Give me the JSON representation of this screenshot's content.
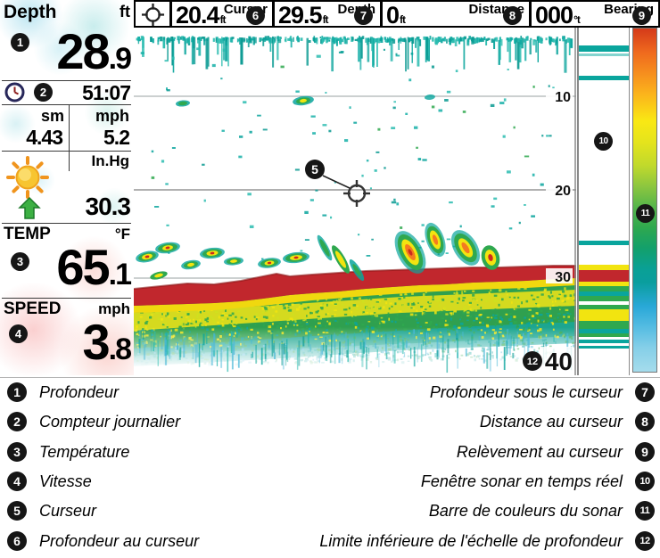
{
  "device": {
    "left_panel": {
      "depth": {
        "badge": "1",
        "label": "Depth",
        "unit": "ft",
        "int": "28",
        "dec": ".9"
      },
      "timer": {
        "badge": "2",
        "value": "51:07"
      },
      "trip": {
        "distance_unit": "sm",
        "distance_value": "4.43",
        "speed_unit": "mph",
        "speed_value": "5.2"
      },
      "pressure": {
        "unit": "In.Hg",
        "value": "30.3"
      },
      "temperature": {
        "badge": "3",
        "label": "TEMP",
        "unit": "°F",
        "int": "65",
        "dec": ".1"
      },
      "speed": {
        "badge": "4",
        "label": "SPEED",
        "unit": "mph",
        "int": "3",
        "dec": ".8"
      }
    },
    "readout_bar": {
      "cursor": {
        "label": "Cursor",
        "value": "20.4",
        "unit": "ft",
        "badge": "6"
      },
      "depth": {
        "label": "Depth",
        "value": "29.5",
        "unit": "ft",
        "badge": "7"
      },
      "distance": {
        "label": "Distance",
        "value": "0",
        "unit": "ft",
        "badge": "8"
      },
      "bearing": {
        "label": "Bearing",
        "value": "000",
        "unit": "°t",
        "badge": "9"
      }
    },
    "sonar_view": {
      "cursor_badge": "5",
      "depth_marks": [
        "10",
        "20",
        "30"
      ],
      "scale_limit": {
        "value": "40",
        "badge": "12"
      },
      "realtime_window_badge": "10",
      "colorbar_badge": "11"
    }
  },
  "legend": {
    "left": [
      {
        "badge": "1",
        "text": "Profondeur"
      },
      {
        "badge": "2",
        "text": "Compteur journalier"
      },
      {
        "badge": "3",
        "text": "Température"
      },
      {
        "badge": "4",
        "text": "Vitesse"
      },
      {
        "badge": "5",
        "text": "Curseur"
      },
      {
        "badge": "6",
        "text": "Profondeur au curseur"
      }
    ],
    "right": [
      {
        "badge": "7",
        "text": "Profondeur sous le curseur"
      },
      {
        "badge": "8",
        "text": "Distance au curseur"
      },
      {
        "badge": "9",
        "text": "Relèvement au curseur"
      },
      {
        "badge": "10",
        "text": "Fenêtre sonar en temps réel"
      },
      {
        "badge": "11",
        "text": "Barre de couleurs du sonar"
      },
      {
        "badge": "12",
        "text": "Limite inférieure de l'échelle de profondeur"
      }
    ]
  },
  "icons": {
    "clock": "clock-icon",
    "sun": "sun-icon",
    "arrow_up": "up-arrow-icon",
    "crosshair": "crosshair-icon",
    "cursor_crosshair": "cursor-crosshair-icon"
  },
  "colors": {
    "sonar_red": "#c1272d",
    "sonar_orange": "#f47a20",
    "sonar_yellow": "#f2e410",
    "sonar_green": "#2fa84f",
    "sonar_teal": "#0aa59d",
    "sonar_blue": "#4ab8d8",
    "arrow_green": "#3cb043"
  }
}
